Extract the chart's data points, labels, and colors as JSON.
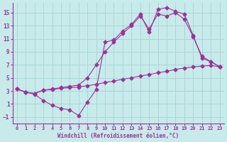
{
  "background_color": "#c8eaea",
  "grid_color": "#a8d8d8",
  "line_color": "#993399",
  "xlabel": "Windchill (Refroidissement éolien,°C)",
  "xlim": [
    -0.5,
    23.5
  ],
  "ylim": [
    -2.0,
    16.5
  ],
  "xticks": [
    0,
    1,
    2,
    3,
    4,
    5,
    6,
    7,
    8,
    9,
    10,
    11,
    12,
    13,
    14,
    15,
    16,
    17,
    18,
    19,
    20,
    21,
    22,
    23
  ],
  "yticks": [
    -1,
    1,
    3,
    5,
    7,
    9,
    11,
    13,
    15
  ],
  "line1_x": [
    0,
    1,
    2,
    3,
    4,
    5,
    6,
    7,
    8,
    9,
    10,
    11,
    12,
    13,
    14,
    15,
    16,
    17,
    18,
    19,
    20,
    21,
    22,
    23
  ],
  "line1_y": [
    3.3,
    2.8,
    2.6,
    3.1,
    3.2,
    3.4,
    3.5,
    3.6,
    3.8,
    4.0,
    4.3,
    4.5,
    4.8,
    5.0,
    5.3,
    5.5,
    5.8,
    6.0,
    6.3,
    6.5,
    6.7,
    6.8,
    6.9,
    6.7
  ],
  "line2_x": [
    0,
    1,
    2,
    3,
    4,
    5,
    6,
    7,
    8,
    9,
    10,
    11,
    12,
    13,
    14,
    15,
    16,
    17,
    18,
    19,
    20,
    21,
    22,
    23
  ],
  "line2_y": [
    3.3,
    2.8,
    2.5,
    1.5,
    0.8,
    0.3,
    0.1,
    -0.8,
    1.3,
    3.2,
    10.5,
    10.8,
    12.2,
    13.2,
    14.8,
    12.0,
    15.5,
    15.8,
    15.2,
    14.8,
    11.5,
    8.0,
    7.5,
    6.7
  ],
  "line3_x": [
    0,
    1,
    2,
    3,
    4,
    5,
    6,
    7,
    8,
    9,
    10,
    11,
    12,
    13,
    14,
    15,
    16,
    17,
    18,
    19,
    20,
    21,
    22,
    23
  ],
  "line3_y": [
    3.3,
    2.8,
    2.6,
    3.1,
    3.3,
    3.5,
    3.7,
    3.9,
    5.0,
    7.0,
    9.0,
    10.5,
    11.8,
    13.0,
    14.5,
    12.5,
    14.8,
    14.5,
    15.0,
    14.0,
    11.3,
    8.3,
    7.5,
    6.7
  ]
}
